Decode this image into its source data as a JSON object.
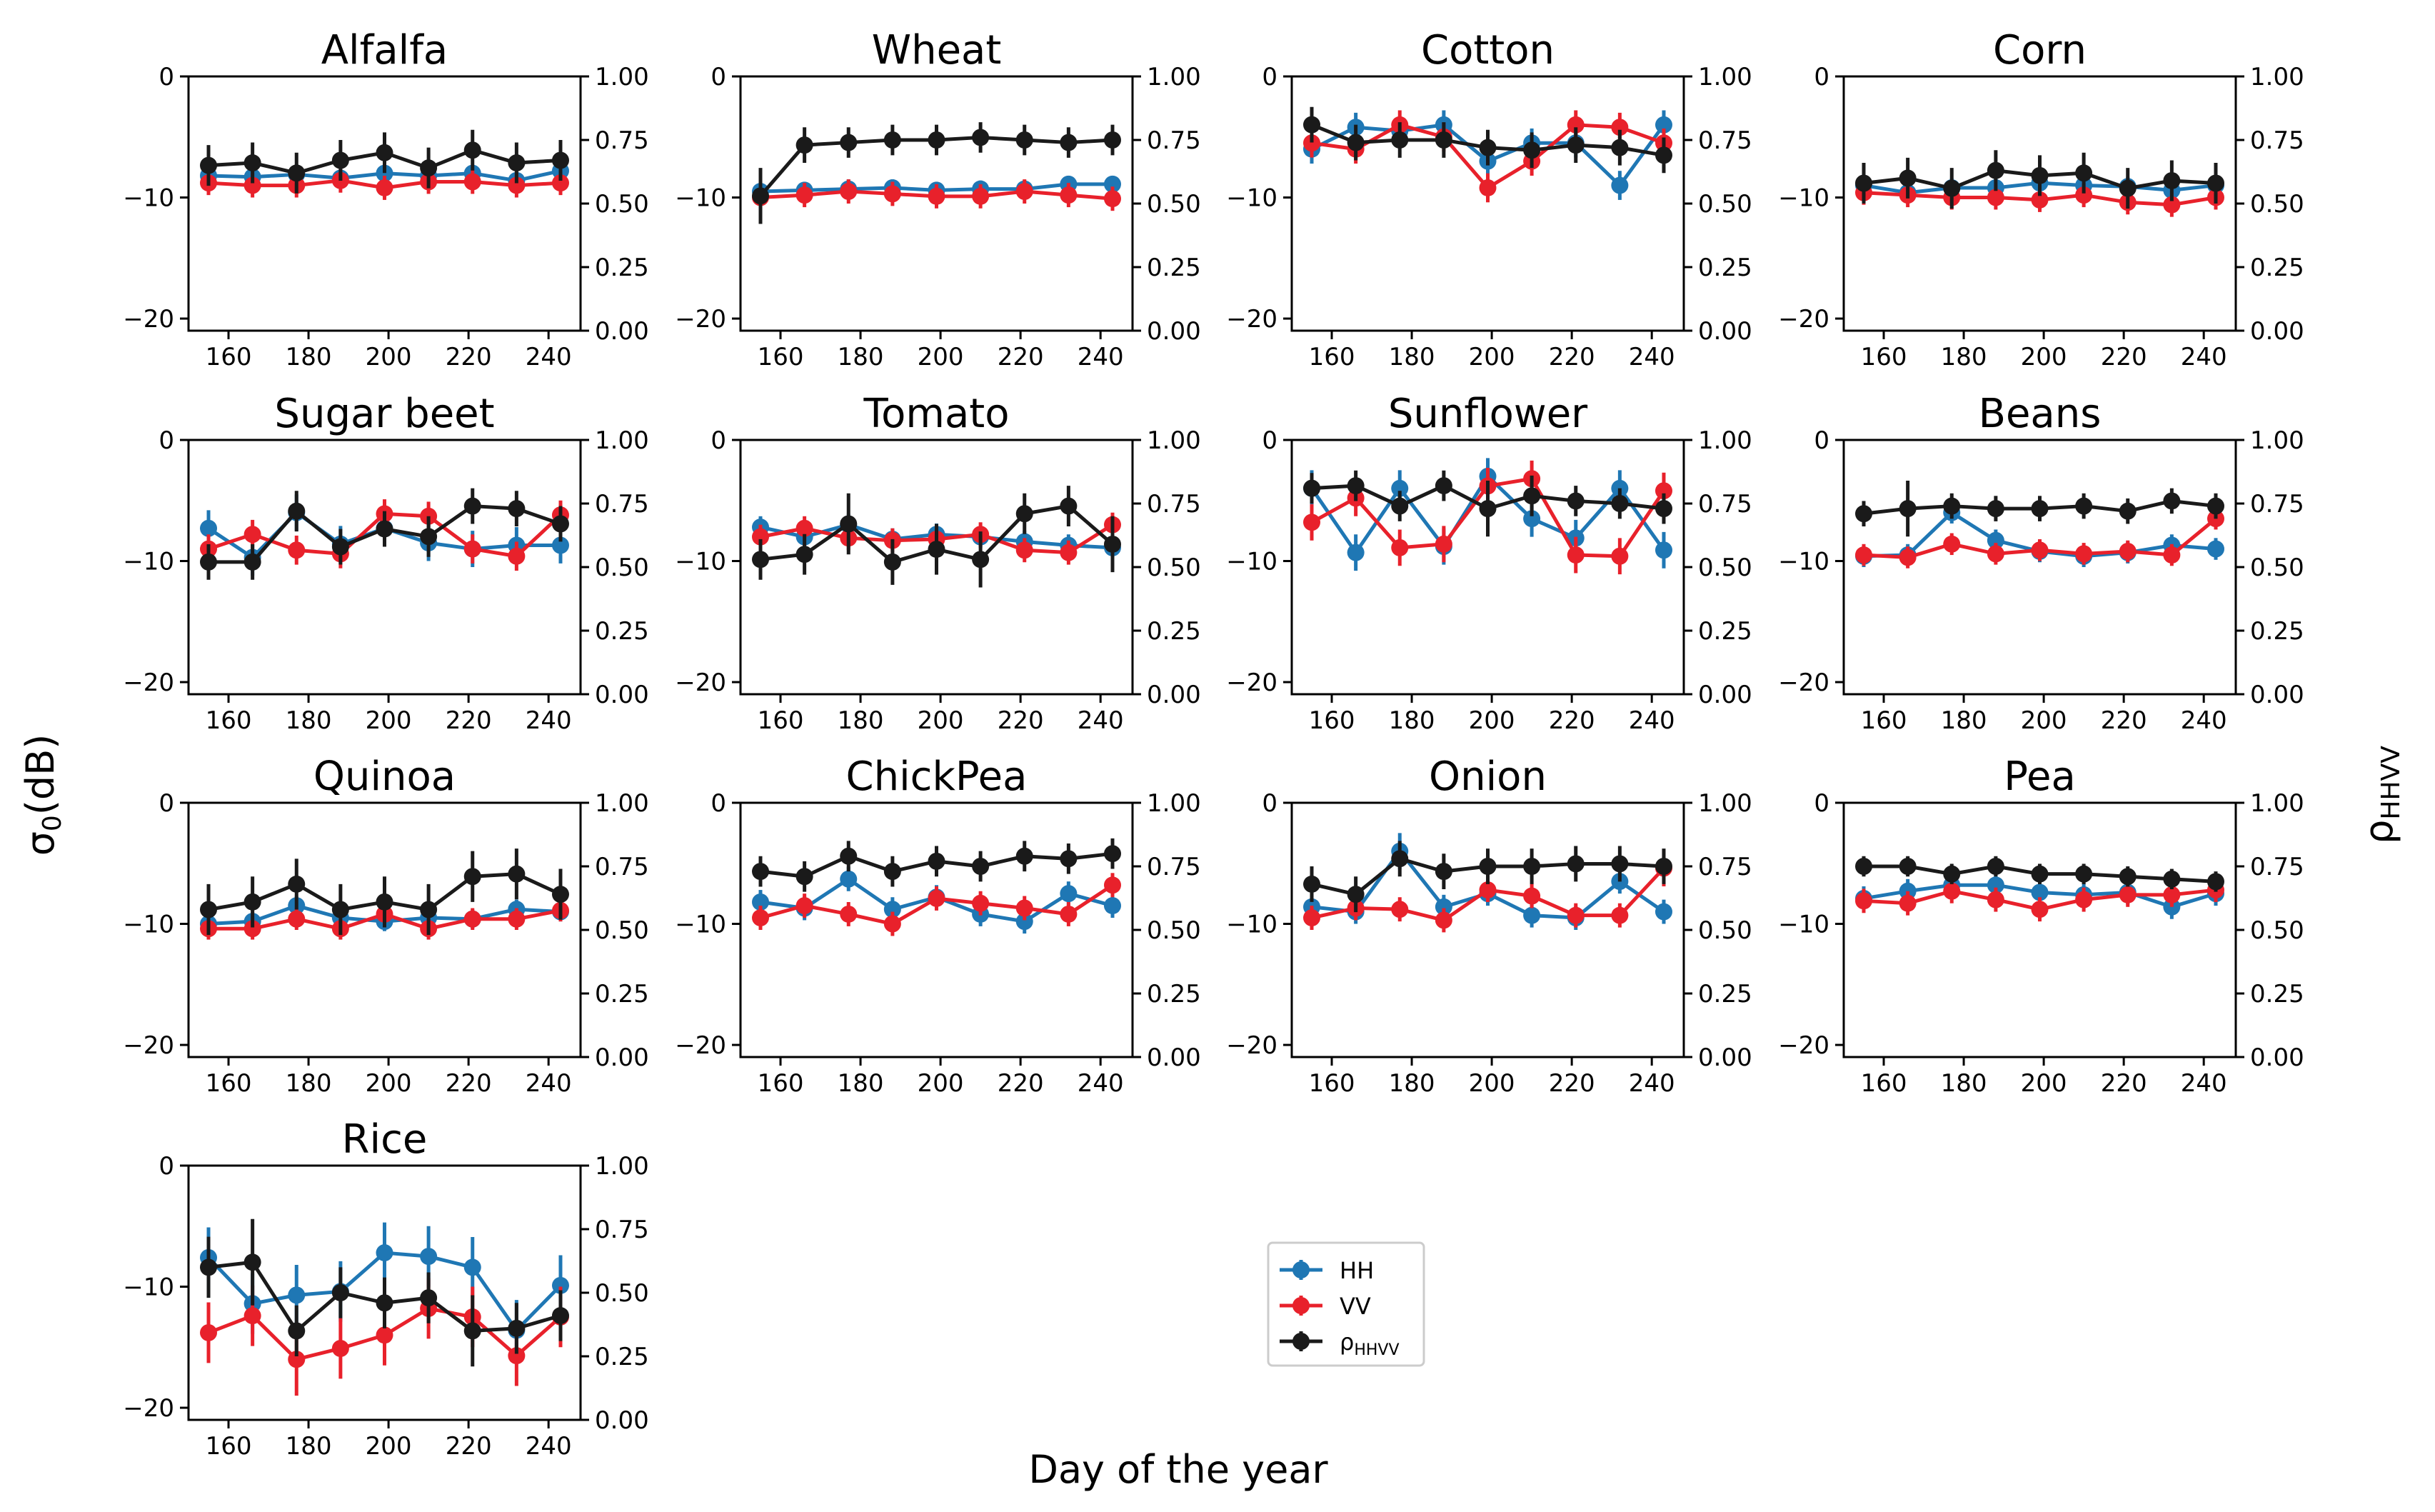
{
  "chart_data": {
    "type": "line",
    "layout": "small-multiples-4-columns",
    "xlabel": "Day of the year",
    "ylabel_left": "σ0(dB)",
    "ylabel_right": "ρHHVV",
    "x": [
      155,
      166,
      177,
      188,
      199,
      210,
      221,
      232,
      243
    ],
    "x_ticks": [
      160,
      180,
      200,
      220,
      240
    ],
    "x_range": [
      150,
      248
    ],
    "left_axis": {
      "range": [
        -21,
        0
      ],
      "ticks": [
        0,
        -10,
        -20
      ],
      "tick_labels": [
        "0",
        "−10",
        "−20"
      ]
    },
    "right_axis": {
      "range": [
        0,
        1
      ],
      "ticks": [
        0,
        0.25,
        0.5,
        0.75,
        1
      ],
      "tick_labels": [
        "0.00",
        "0.25",
        "0.50",
        "0.75",
        "1.00"
      ]
    },
    "legend": {
      "placement": "bottom-center",
      "entries": [
        {
          "key": "hh",
          "label": "HH",
          "color": "#1f77b4"
        },
        {
          "key": "vv",
          "label": "VV",
          "color": "#e8212b"
        },
        {
          "key": "rho",
          "label": "ρHHVV",
          "label_main": "ρ",
          "label_sub": "HHVV",
          "color": "#1a1a1a"
        }
      ]
    },
    "panels": [
      {
        "title": "Alfalfa",
        "hh": [
          -8.2,
          -8.3,
          -8.1,
          -8.4,
          -8.0,
          -8.2,
          -8.0,
          -8.6,
          -7.8
        ],
        "hh_err": [
          0.6,
          0.7,
          0.7,
          0.6,
          0.7,
          0.7,
          0.7,
          0.7,
          0.7
        ],
        "vv": [
          -8.8,
          -9.0,
          -9.0,
          -8.6,
          -9.2,
          -8.7,
          -8.7,
          -9.0,
          -8.8
        ],
        "vv_err": [
          1.0,
          1.0,
          1.0,
          1.0,
          1.0,
          1.0,
          1.0,
          1.0,
          1.0
        ],
        "rho": [
          0.65,
          0.66,
          0.62,
          0.67,
          0.7,
          0.64,
          0.71,
          0.66,
          0.67
        ],
        "rho_err": [
          0.08,
          0.08,
          0.08,
          0.08,
          0.08,
          0.08,
          0.08,
          0.08,
          0.08
        ]
      },
      {
        "title": "Wheat",
        "hh": [
          -9.5,
          -9.4,
          -9.3,
          -9.2,
          -9.4,
          -9.3,
          -9.3,
          -8.9,
          -8.9
        ],
        "hh_err": [
          0.7,
          0.7,
          0.8,
          0.7,
          0.7,
          0.7,
          0.7,
          0.7,
          0.7
        ],
        "vv": [
          -10.0,
          -9.8,
          -9.5,
          -9.7,
          -9.9,
          -9.9,
          -9.5,
          -9.8,
          -10.1
        ],
        "vv_err": [
          1.0,
          1.0,
          1.0,
          1.0,
          1.0,
          1.0,
          1.0,
          1.0,
          1.0
        ],
        "rho": [
          0.53,
          0.73,
          0.74,
          0.75,
          0.75,
          0.76,
          0.75,
          0.74,
          0.75
        ],
        "rho_err": [
          0.11,
          0.07,
          0.06,
          0.06,
          0.06,
          0.06,
          0.06,
          0.06,
          0.06
        ]
      },
      {
        "title": "Cotton",
        "hh": [
          -6.0,
          -4.2,
          -4.5,
          -4.0,
          -7.0,
          -5.5,
          -5.5,
          -9.0,
          -4.0
        ],
        "hh_err": [
          1.2,
          1.2,
          1.2,
          1.2,
          1.2,
          1.2,
          1.2,
          1.2,
          1.2
        ],
        "vv": [
          -5.5,
          -6.0,
          -4.0,
          -5.0,
          -9.2,
          -7.0,
          -4.0,
          -4.2,
          -5.5
        ],
        "vv_err": [
          1.2,
          1.2,
          1.2,
          1.2,
          1.2,
          1.2,
          1.2,
          1.2,
          1.2
        ],
        "rho": [
          0.81,
          0.74,
          0.75,
          0.75,
          0.72,
          0.71,
          0.73,
          0.72,
          0.69
        ],
        "rho_err": [
          0.07,
          0.07,
          0.07,
          0.07,
          0.07,
          0.07,
          0.07,
          0.07,
          0.07
        ]
      },
      {
        "title": "Corn",
        "hh": [
          -9.0,
          -9.6,
          -9.2,
          -9.2,
          -8.8,
          -9.0,
          -9.1,
          -9.4,
          -9.0
        ],
        "hh_err": [
          0.8,
          0.8,
          0.8,
          0.8,
          0.8,
          0.8,
          0.8,
          0.8,
          0.8
        ],
        "vv": [
          -9.6,
          -9.8,
          -10.0,
          -10.0,
          -10.2,
          -9.8,
          -10.4,
          -10.6,
          -10.0
        ],
        "vv_err": [
          1.0,
          1.0,
          1.0,
          1.0,
          1.0,
          1.0,
          1.0,
          1.0,
          1.0
        ],
        "rho": [
          0.58,
          0.6,
          0.56,
          0.63,
          0.61,
          0.62,
          0.56,
          0.59,
          0.58
        ],
        "rho_err": [
          0.08,
          0.08,
          0.08,
          0.08,
          0.08,
          0.08,
          0.08,
          0.08,
          0.08
        ]
      },
      {
        "title": "Sugar beet",
        "hh": [
          -7.3,
          -9.7,
          -6.0,
          -8.6,
          -7.3,
          -8.5,
          -9.0,
          -8.7,
          -8.7
        ],
        "hh_err": [
          1.5,
          1.5,
          1.5,
          1.5,
          1.5,
          1.5,
          1.5,
          1.5,
          1.5
        ],
        "vv": [
          -9.0,
          -7.8,
          -9.1,
          -9.4,
          -6.1,
          -6.3,
          -9.0,
          -9.6,
          -6.2
        ],
        "vv_err": [
          1.2,
          1.2,
          1.2,
          1.2,
          1.2,
          1.2,
          1.2,
          1.2,
          1.2
        ],
        "rho": [
          0.52,
          0.52,
          0.72,
          0.58,
          0.65,
          0.62,
          0.74,
          0.73,
          0.67
        ],
        "rho_err": [
          0.07,
          0.07,
          0.08,
          0.07,
          0.07,
          0.08,
          0.07,
          0.07,
          0.07
        ]
      },
      {
        "title": "Tomato",
        "hh": [
          -7.2,
          -8.0,
          -7.0,
          -8.2,
          -7.8,
          -8.0,
          -8.4,
          -8.7,
          -8.9
        ],
        "hh_err": [
          0.9,
          0.9,
          0.9,
          0.9,
          0.9,
          0.9,
          0.9,
          0.9,
          0.9
        ],
        "vv": [
          -8.0,
          -7.3,
          -8.1,
          -8.3,
          -8.2,
          -7.8,
          -9.1,
          -9.3,
          -7.0
        ],
        "vv_err": [
          1.0,
          1.0,
          1.0,
          1.0,
          1.0,
          1.0,
          1.0,
          1.0,
          1.0
        ],
        "rho": [
          0.53,
          0.55,
          0.67,
          0.52,
          0.57,
          0.53,
          0.71,
          0.74,
          0.59
        ],
        "rho_err": [
          0.08,
          0.08,
          0.12,
          0.09,
          0.1,
          0.11,
          0.08,
          0.08,
          0.11
        ]
      },
      {
        "title": "Sunflower",
        "hh": [
          -4.0,
          -9.3,
          -4.0,
          -8.8,
          -3.0,
          -6.5,
          -8.1,
          -4.0,
          -9.1
        ],
        "hh_err": [
          1.5,
          1.5,
          1.5,
          1.5,
          1.5,
          1.5,
          1.5,
          1.5,
          1.5
        ],
        "vv": [
          -6.8,
          -4.8,
          -8.9,
          -8.6,
          -3.8,
          -3.2,
          -9.5,
          -9.6,
          -4.2
        ],
        "vv_err": [
          1.5,
          1.5,
          1.5,
          1.5,
          1.5,
          1.5,
          1.5,
          1.5,
          1.5
        ],
        "rho": [
          0.81,
          0.82,
          0.74,
          0.82,
          0.73,
          0.78,
          0.76,
          0.75,
          0.73
        ],
        "rho_err": [
          0.06,
          0.06,
          0.06,
          0.06,
          0.11,
          0.08,
          0.06,
          0.06,
          0.06
        ]
      },
      {
        "title": "Beans",
        "hh": [
          -9.6,
          -9.5,
          -6.0,
          -8.3,
          -9.2,
          -9.6,
          -9.3,
          -8.7,
          -9.0
        ],
        "hh_err": [
          0.9,
          0.9,
          0.9,
          0.9,
          0.9,
          0.9,
          0.9,
          0.9,
          0.9
        ],
        "vv": [
          -9.5,
          -9.7,
          -8.6,
          -9.4,
          -9.1,
          -9.4,
          -9.2,
          -9.5,
          -6.5
        ],
        "vv_err": [
          0.9,
          0.9,
          0.9,
          0.9,
          0.9,
          0.9,
          0.9,
          0.9,
          0.9
        ],
        "rho": [
          0.71,
          0.73,
          0.74,
          0.73,
          0.73,
          0.74,
          0.72,
          0.76,
          0.74
        ],
        "rho_err": [
          0.05,
          0.11,
          0.05,
          0.05,
          0.05,
          0.05,
          0.05,
          0.05,
          0.05
        ]
      },
      {
        "title": "Quinoa",
        "hh": [
          -10.0,
          -9.8,
          -8.5,
          -9.5,
          -9.8,
          -9.5,
          -9.6,
          -8.8,
          -9.0
        ],
        "hh_err": [
          0.8,
          0.8,
          0.8,
          0.8,
          0.8,
          0.8,
          0.8,
          0.8,
          0.8
        ],
        "vv": [
          -10.4,
          -10.4,
          -9.6,
          -10.4,
          -9.2,
          -10.4,
          -9.6,
          -9.6,
          -8.9
        ],
        "vv_err": [
          0.9,
          0.9,
          0.9,
          0.9,
          0.9,
          0.9,
          0.9,
          0.9,
          0.9
        ],
        "rho": [
          0.58,
          0.61,
          0.68,
          0.58,
          0.61,
          0.58,
          0.71,
          0.72,
          0.64
        ],
        "rho_err": [
          0.1,
          0.1,
          0.1,
          0.1,
          0.1,
          0.1,
          0.1,
          0.1,
          0.1
        ]
      },
      {
        "title": "ChickPea",
        "hh": [
          -8.2,
          -8.7,
          -6.3,
          -8.8,
          -7.8,
          -9.2,
          -9.8,
          -7.5,
          -8.5
        ],
        "hh_err": [
          1.0,
          1.0,
          1.0,
          1.0,
          1.0,
          1.0,
          1.0,
          1.0,
          1.0
        ],
        "vv": [
          -9.5,
          -8.5,
          -9.2,
          -10.0,
          -7.9,
          -8.3,
          -8.7,
          -9.2,
          -6.8
        ],
        "vv_err": [
          1.0,
          1.0,
          1.0,
          1.0,
          1.0,
          1.0,
          1.0,
          1.0,
          1.0
        ],
        "rho": [
          0.73,
          0.71,
          0.79,
          0.73,
          0.77,
          0.75,
          0.79,
          0.78,
          0.8
        ],
        "rho_err": [
          0.06,
          0.06,
          0.06,
          0.06,
          0.06,
          0.06,
          0.06,
          0.06,
          0.06
        ]
      },
      {
        "title": "Onion",
        "hh": [
          -8.6,
          -9.0,
          -4.0,
          -8.6,
          -7.5,
          -9.3,
          -9.5,
          -6.5,
          -9.0
        ],
        "hh_err": [
          1.0,
          1.0,
          1.5,
          1.0,
          1.0,
          1.0,
          1.0,
          1.0,
          1.0
        ],
        "vv": [
          -9.5,
          -8.7,
          -8.8,
          -9.7,
          -7.2,
          -7.7,
          -9.3,
          -9.3,
          -5.4
        ],
        "vv_err": [
          1.0,
          1.0,
          1.0,
          1.0,
          1.0,
          1.0,
          1.0,
          1.0,
          1.5
        ],
        "rho": [
          0.68,
          0.64,
          0.78,
          0.73,
          0.75,
          0.75,
          0.76,
          0.76,
          0.75
        ],
        "rho_err": [
          0.07,
          0.07,
          0.07,
          0.07,
          0.07,
          0.07,
          0.07,
          0.07,
          0.07
        ]
      },
      {
        "title": "Pea",
        "hh": [
          -7.9,
          -7.3,
          -6.8,
          -6.8,
          -7.4,
          -7.6,
          -7.4,
          -8.6,
          -7.5
        ],
        "hh_err": [
          1.0,
          1.0,
          1.0,
          1.0,
          1.0,
          1.0,
          1.0,
          1.0,
          1.0
        ],
        "vv": [
          -8.1,
          -8.3,
          -7.3,
          -8.0,
          -8.8,
          -8.0,
          -7.6,
          -7.6,
          -7.2
        ],
        "vv_err": [
          1.0,
          1.0,
          1.0,
          1.0,
          1.0,
          1.0,
          1.0,
          1.0,
          1.0
        ],
        "rho": [
          0.75,
          0.75,
          0.72,
          0.75,
          0.72,
          0.72,
          0.71,
          0.7,
          0.69
        ],
        "rho_err": [
          0.04,
          0.04,
          0.04,
          0.04,
          0.04,
          0.04,
          0.04,
          0.04,
          0.04
        ]
      },
      {
        "title": "Rice",
        "hh": [
          -7.6,
          -11.4,
          -10.7,
          -10.4,
          -7.2,
          -7.5,
          -8.4,
          -13.6,
          -9.9
        ],
        "hh_err": [
          2.5,
          2.5,
          2.5,
          2.5,
          2.5,
          2.5,
          2.5,
          2.5,
          2.5
        ],
        "vv": [
          -13.8,
          -12.4,
          -16.0,
          -15.1,
          -14.0,
          -11.8,
          -12.5,
          -15.7,
          -12.5
        ],
        "vv_err": [
          2.5,
          2.5,
          3.0,
          2.5,
          2.5,
          2.5,
          2.5,
          2.5,
          2.5
        ],
        "rho": [
          0.6,
          0.62,
          0.35,
          0.5,
          0.46,
          0.48,
          0.35,
          0.36,
          0.41
        ],
        "rho_err": [
          0.12,
          0.17,
          0.1,
          0.1,
          0.1,
          0.1,
          0.14,
          0.1,
          0.1
        ]
      }
    ]
  }
}
